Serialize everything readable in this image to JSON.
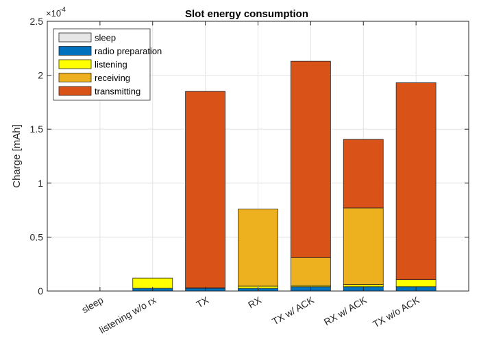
{
  "chart_data": {
    "type": "bar",
    "stacked": true,
    "title": "Slot energy consumption",
    "ylabel": "Charge [mAh]",
    "xlabel": "",
    "exponent_label": "×10",
    "exponent_value": "-4",
    "ylim": [
      0,
      2.5
    ],
    "yticks": [
      "0",
      "0.5",
      "1",
      "1.5",
      "2",
      "2.5"
    ],
    "grid": true,
    "legend_position": "top-left",
    "categories": [
      "sleep",
      "listening w/o rx",
      "TX",
      "RX",
      "TX w/ ACK",
      "RX w/ ACK",
      "TX w/o ACK"
    ],
    "series": [
      {
        "name": "sleep",
        "color": "#e6e6e6",
        "values": [
          0,
          0,
          0,
          0,
          0,
          0,
          0
        ]
      },
      {
        "name": "radio preparation",
        "color": "#0072bd",
        "values": [
          0,
          0.025,
          0.025,
          0.025,
          0.04,
          0.04,
          0.04
        ]
      },
      {
        "name": "listening",
        "color": "#ffff00",
        "values": [
          0,
          0.095,
          0.005,
          0.02,
          0.01,
          0.02,
          0.065
        ]
      },
      {
        "name": "receiving",
        "color": "#edb120",
        "values": [
          0,
          0,
          0,
          0.715,
          0.26,
          0.71,
          0
        ]
      },
      {
        "name": "transmitting",
        "color": "#d95319",
        "values": [
          0,
          0,
          1.82,
          0,
          1.82,
          0.635,
          1.825
        ]
      }
    ]
  }
}
